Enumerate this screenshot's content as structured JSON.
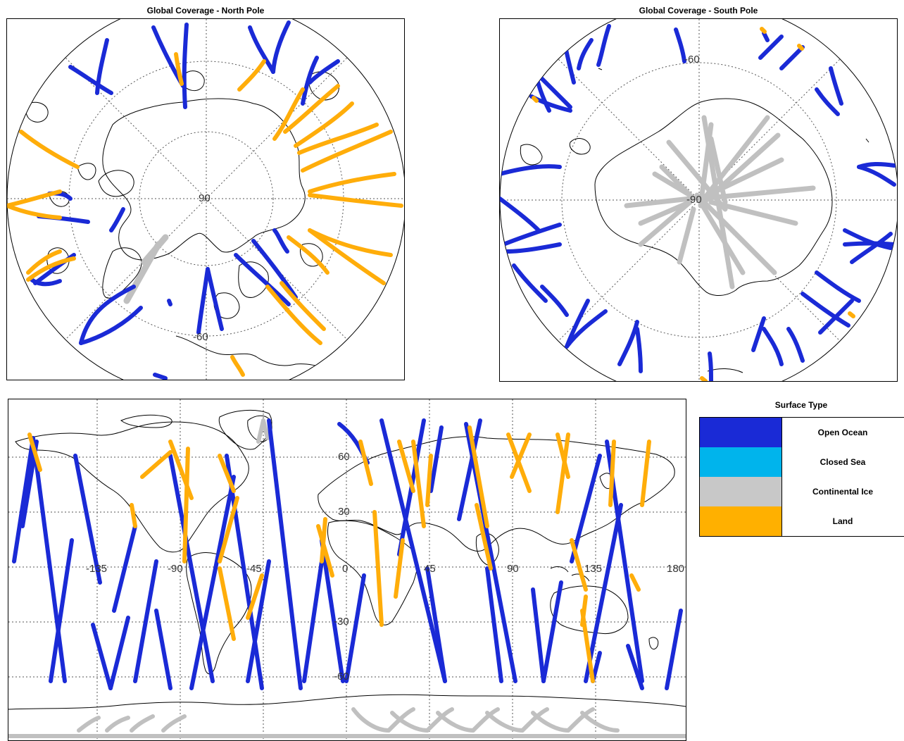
{
  "north": {
    "title": "Global Coverage - North Pole",
    "lat_labels": [
      "90",
      "-60"
    ]
  },
  "south": {
    "title": "Global Coverage - South Pole",
    "lat_labels": [
      "-60",
      "-90"
    ]
  },
  "world": {
    "lon_labels": [
      "-135",
      "-90",
      "-45",
      "0",
      "45",
      "90",
      "135",
      "180"
    ],
    "lat_labels": [
      "60",
      "30",
      "-30",
      "-60"
    ]
  },
  "legend": {
    "title": "Surface Type",
    "items": [
      {
        "label": "Open Ocean",
        "color": "#1a2ad6"
      },
      {
        "label": "Closed Sea",
        "color": "#00b4ec"
      },
      {
        "label": "Continental Ice",
        "color": "#c8c8c8"
      },
      {
        "label": "Land",
        "color": "#ffb000"
      }
    ]
  },
  "colors": {
    "ocean": "#1a2ad6",
    "ice": "#c0c0c0",
    "land": "#ffad0a",
    "coast": "#000000",
    "grid": "#555555"
  }
}
